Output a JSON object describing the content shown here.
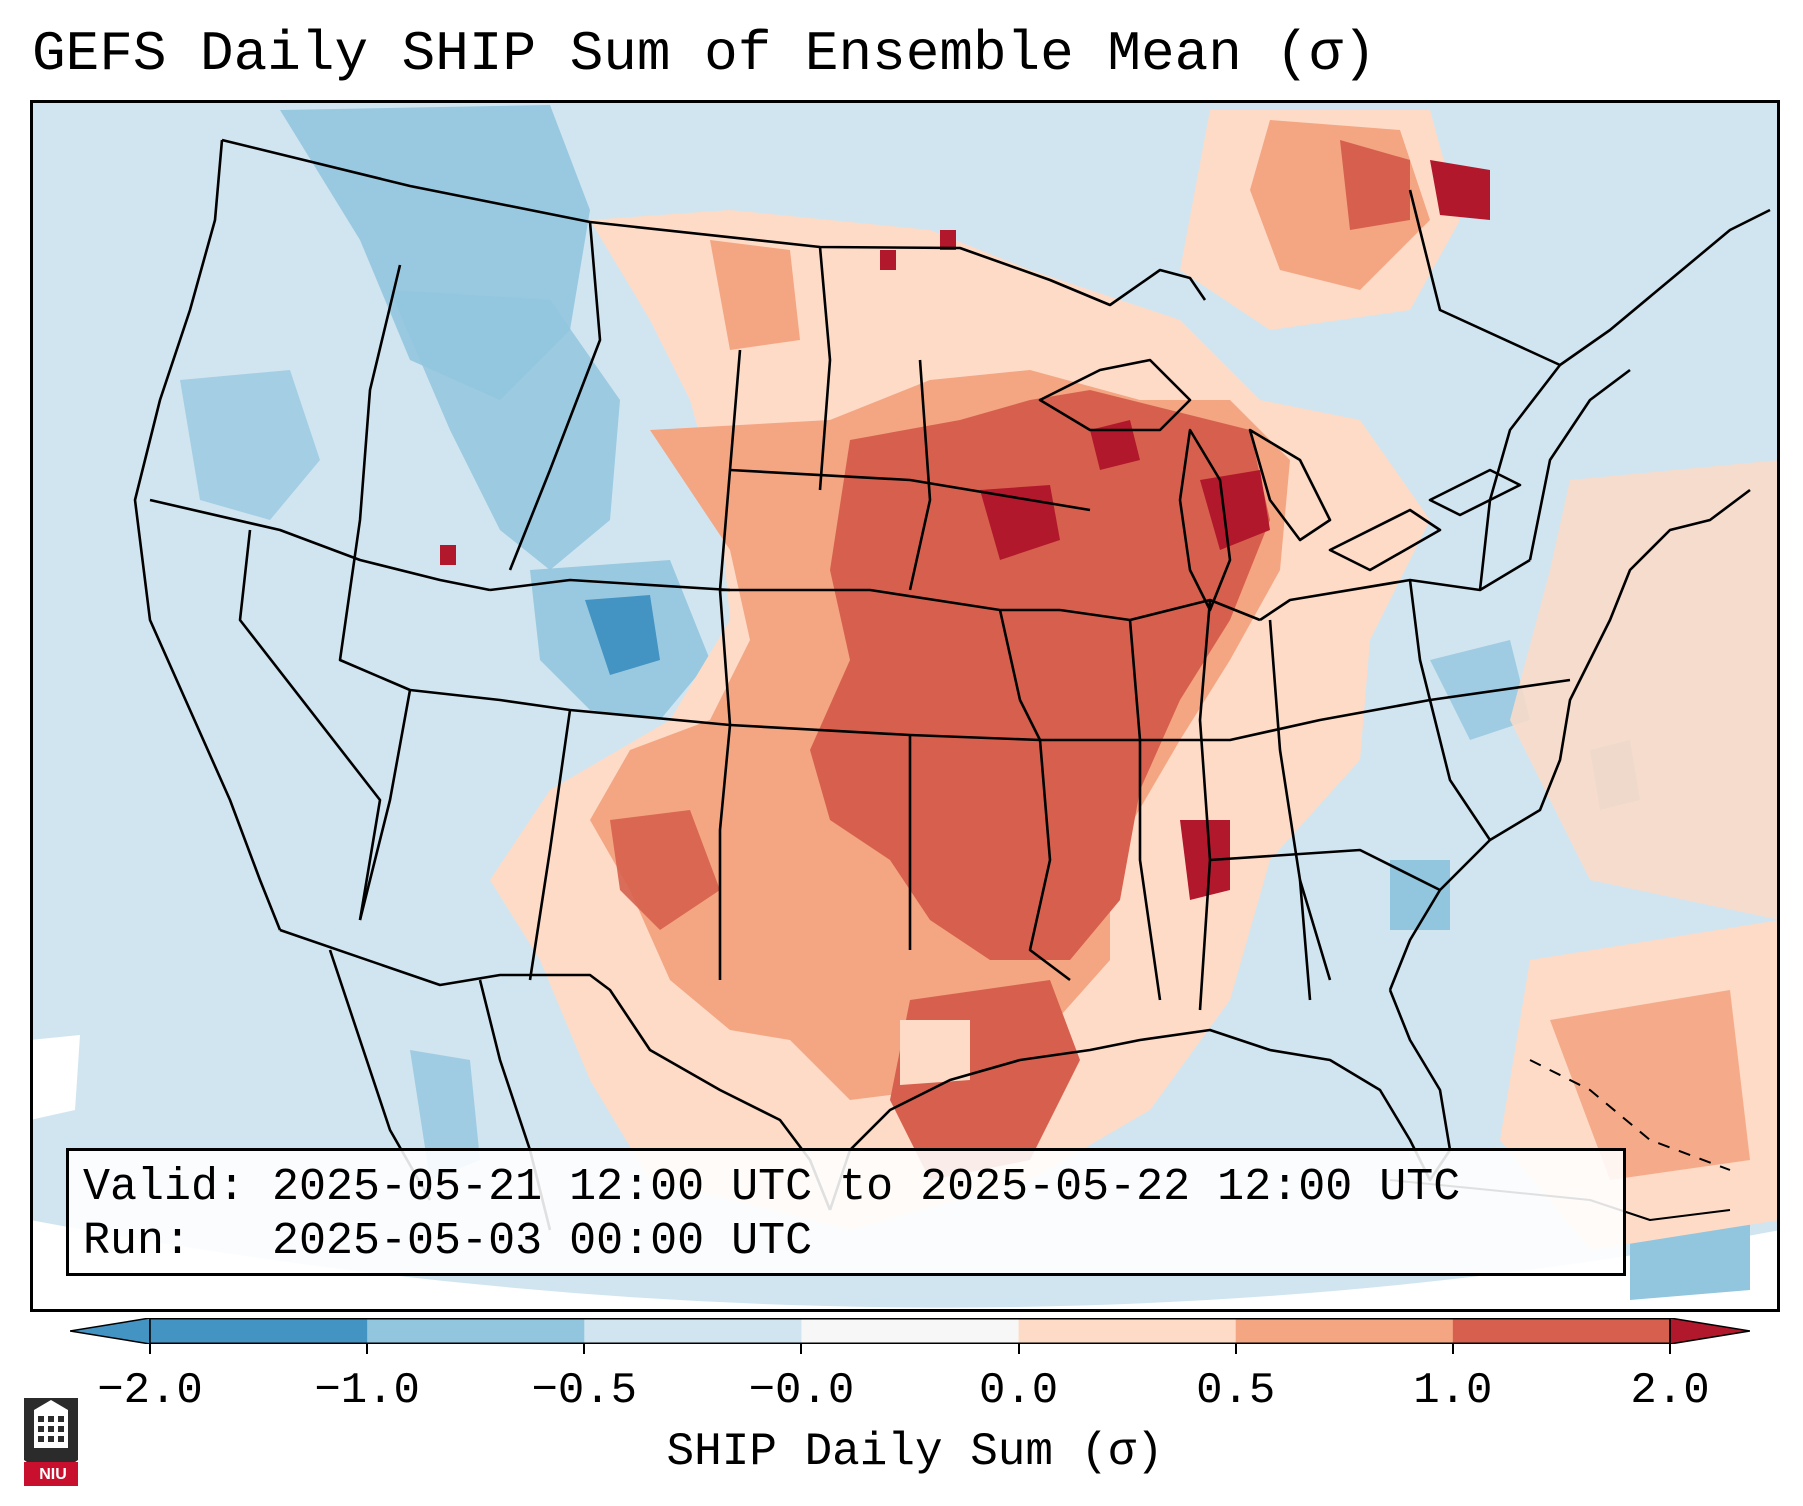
{
  "title": "GEFS Daily SHIP Sum of Ensemble Mean (σ)",
  "info": {
    "valid_line": "Valid: 2025-05-21 12:00 UTC to 2025-05-22 12:00 UTC",
    "run_line": "Run:   2025-05-03 00:00 UTC"
  },
  "colorbar": {
    "title": "SHIP Daily Sum (σ)",
    "tick_labels": [
      "−2.0",
      "−1.0",
      "−0.5",
      "−0.0",
      "0.0",
      "0.5",
      "1.0",
      "2.0"
    ],
    "bin_colors": [
      "#4393c3",
      "#92c5de",
      "#d1e5f0",
      "#f7f7f7",
      "#fddbc7",
      "#f4a582",
      "#d6604d",
      "#b2182b"
    ],
    "extend": "both"
  },
  "logo": {
    "text": "NIU"
  },
  "map": {
    "region": "CONUS",
    "ocean_color": "#d1e5f0",
    "outside_color": "#ffffff",
    "border_color": "#000000"
  }
}
